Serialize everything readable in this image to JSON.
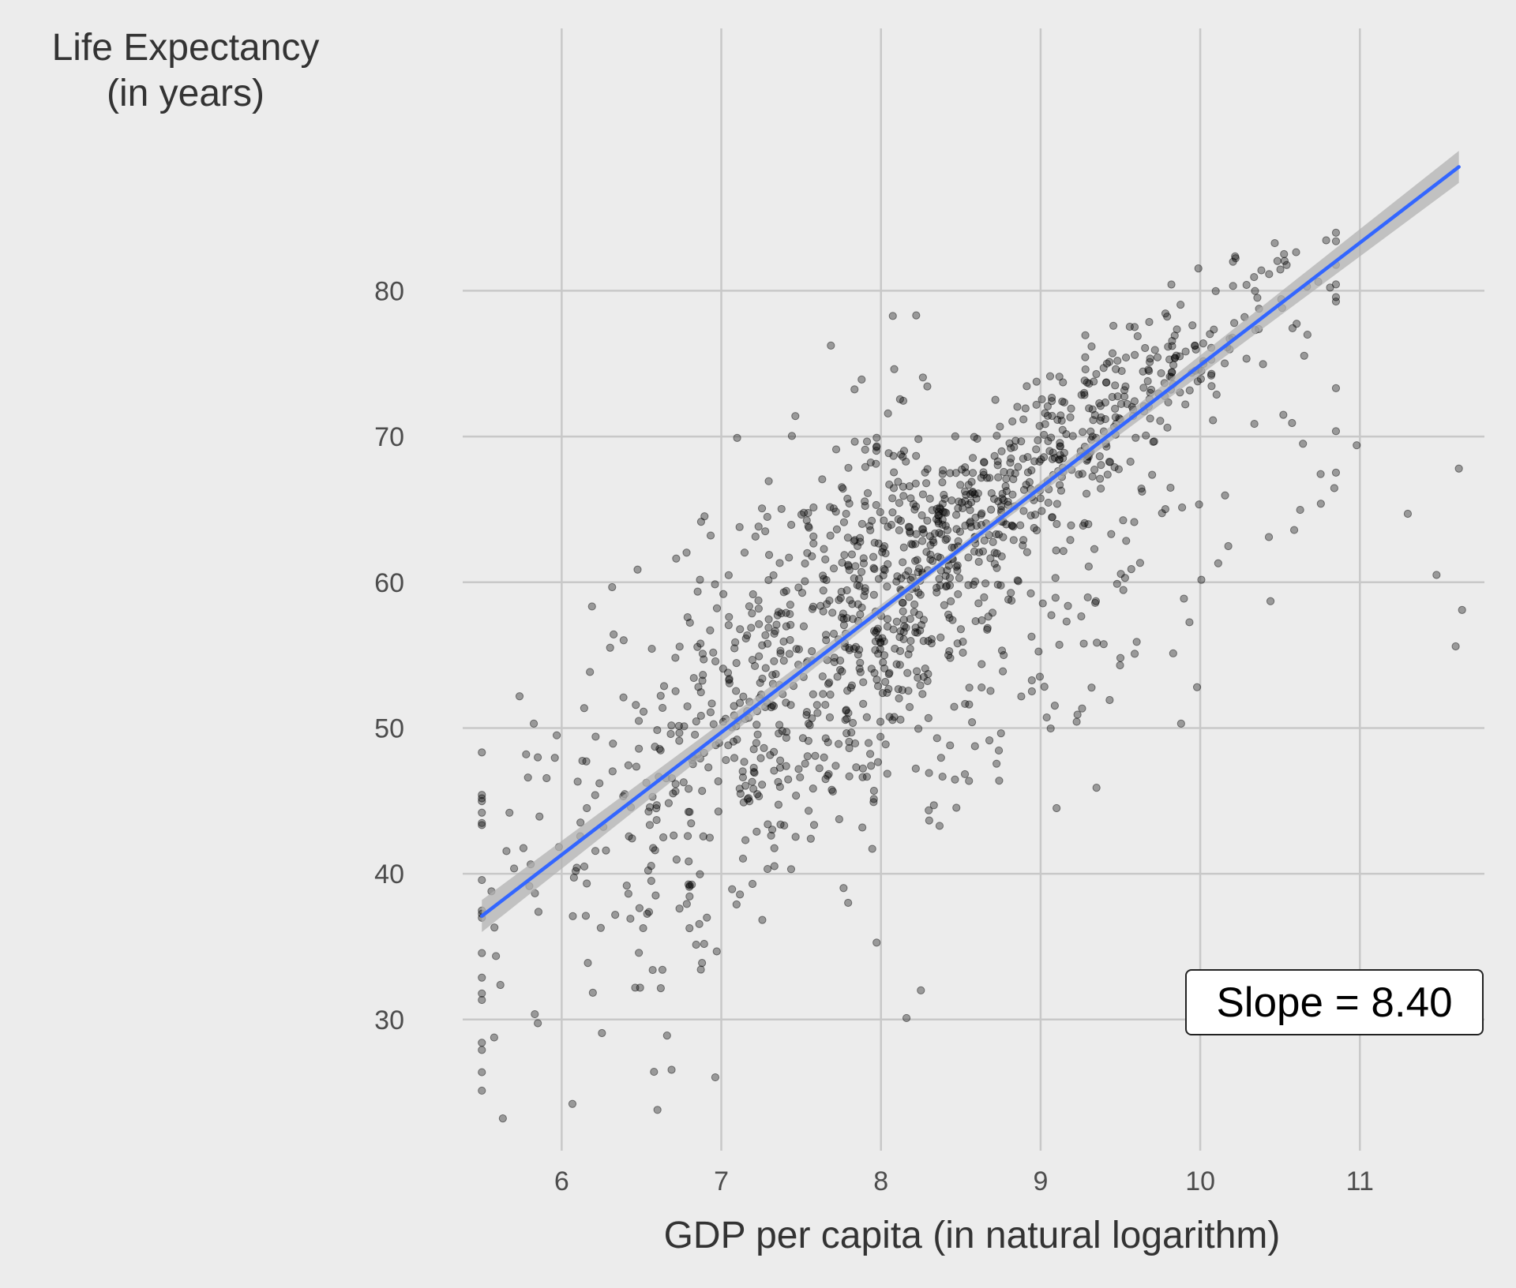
{
  "chart_data": {
    "type": "scatter",
    "ylabel_line1": "Life Expectancy",
    "ylabel_line2": "(in years)",
    "xlabel": "GDP per capita (in natural logarithm)",
    "annotation": "Slope = 8.40",
    "xlim": [
      5.38,
      11.78
    ],
    "ylim": [
      21,
      98
    ],
    "x_ticks": [
      6,
      7,
      8,
      9,
      10,
      11
    ],
    "y_ticks": [
      30,
      40,
      50,
      60,
      70,
      80
    ],
    "grid": true,
    "series": [
      {
        "name": "observations",
        "color": "#000000",
        "opacity": 0.35,
        "n_points": 1400
      },
      {
        "name": "linear fit",
        "color": "#3366ff",
        "band_color": "#b3b3b3",
        "x": [
          5.5,
          11.62
        ],
        "y": [
          37.1,
          88.5
        ],
        "slope": 8.4
      }
    ],
    "sample_outliers": [
      [
        6.6,
        23.8
      ],
      [
        6.66,
        28.9
      ],
      [
        8.16,
        30.1
      ],
      [
        8.25,
        32.0
      ],
      [
        11.62,
        67.8
      ],
      [
        11.3,
        64.7
      ],
      [
        11.48,
        60.5
      ],
      [
        11.64,
        58.1
      ],
      [
        11.6,
        55.6
      ],
      [
        10.44,
        58.7
      ],
      [
        10.43,
        63.1
      ],
      [
        10.98,
        69.4
      ],
      [
        9.98,
        52.8
      ],
      [
        9.88,
        50.3
      ],
      [
        9.1,
        44.5
      ],
      [
        9.35,
        45.9
      ]
    ]
  }
}
